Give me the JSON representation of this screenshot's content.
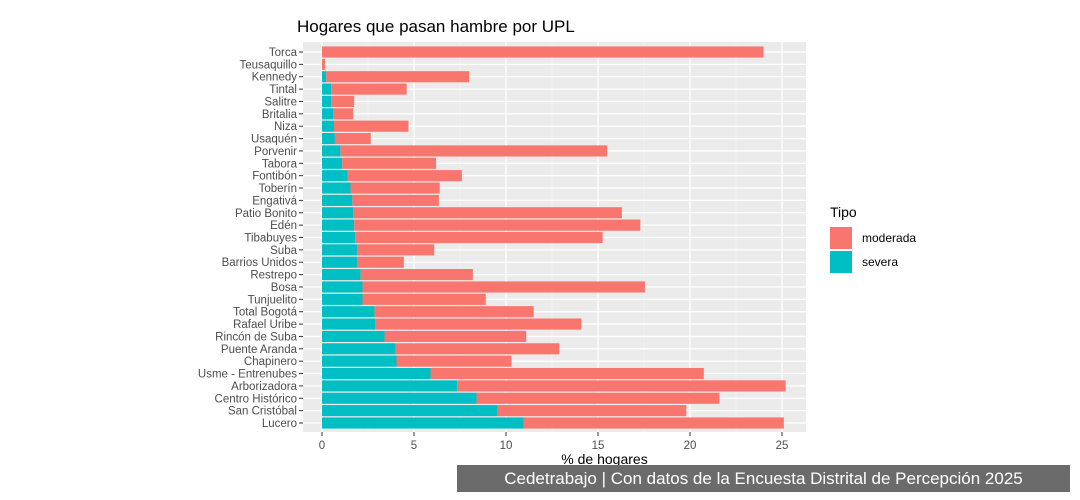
{
  "chart_data": {
    "type": "bar",
    "orientation": "horizontal",
    "stacked": true,
    "title": "Hogares que pasan hambre por UPL",
    "xlabel": "% de hogares",
    "ylabel": "",
    "xlim": [
      0,
      26
    ],
    "xticks": [
      0,
      5,
      10,
      15,
      20,
      25
    ],
    "grid": true,
    "legend": {
      "title": "Tipo",
      "placement": "right"
    },
    "categories": [
      "Torca",
      "Teusaquillo",
      "Kennedy",
      "Tintal",
      "Salitre",
      "Britalia",
      "Niza",
      "Usaquén",
      "Porvenir",
      "Tabora",
      "Fontibón",
      "Toberín",
      "Engativá",
      "Patio Bonito",
      "Edén",
      "Tibabuyes",
      "Suba",
      "Barrios Unidos",
      "Restrepo",
      "Bosa",
      "Tunjuelito",
      "Total Bogotá",
      "Rafael Uribe",
      "Rincón de Suba",
      "Puente Aranda",
      "Chapinero",
      "Usme - Entrenubes",
      "Arborizadora",
      "Centro Histórico",
      "San Cristóbal",
      "Lucero"
    ],
    "series": [
      {
        "name": "severa",
        "color": "#00BFC4",
        "values": [
          0,
          0,
          0.23,
          0.5,
          0.5,
          0.6,
          0.65,
          0.7,
          1.0,
          1.1,
          1.4,
          1.55,
          1.65,
          1.7,
          1.75,
          1.8,
          1.9,
          1.9,
          2.1,
          2.2,
          2.2,
          2.85,
          2.9,
          3.4,
          4.0,
          4.05,
          5.9,
          7.35,
          8.4,
          9.55,
          10.95
        ]
      },
      {
        "name": "moderada",
        "color": "#F8766D",
        "values": [
          24.0,
          0.17,
          7.77,
          4.1,
          1.25,
          1.1,
          4.05,
          1.95,
          14.5,
          5.1,
          6.2,
          4.85,
          4.7,
          14.6,
          15.55,
          13.45,
          4.2,
          2.55,
          6.1,
          15.35,
          6.7,
          8.65,
          11.2,
          7.7,
          8.9,
          6.25,
          14.85,
          17.85,
          13.2,
          10.25,
          14.15
        ]
      }
    ]
  },
  "footer": "Cedetrabajo | Con datos de la Encuesta Distrital de Percepción 2025"
}
